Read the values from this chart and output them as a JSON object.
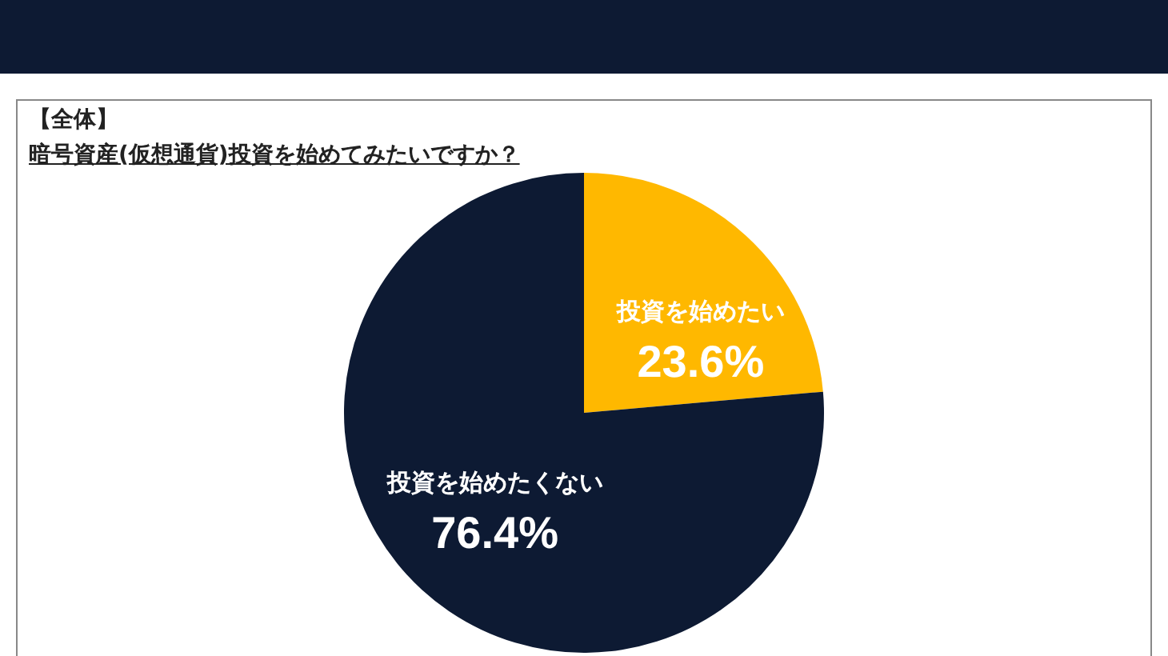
{
  "chart_data": {
    "type": "pie",
    "title": "【全体】",
    "subtitle": "暗号資産(仮想通貨)投資を始めてみたいですか？",
    "categories": [
      "投資を始めたい",
      "投資を始めたくない"
    ],
    "values": [
      23.6,
      76.4
    ],
    "colors": [
      "#ffb800",
      "#0d1a33"
    ],
    "value_labels": [
      "23.6%",
      "76.4%"
    ],
    "legend": false
  }
}
